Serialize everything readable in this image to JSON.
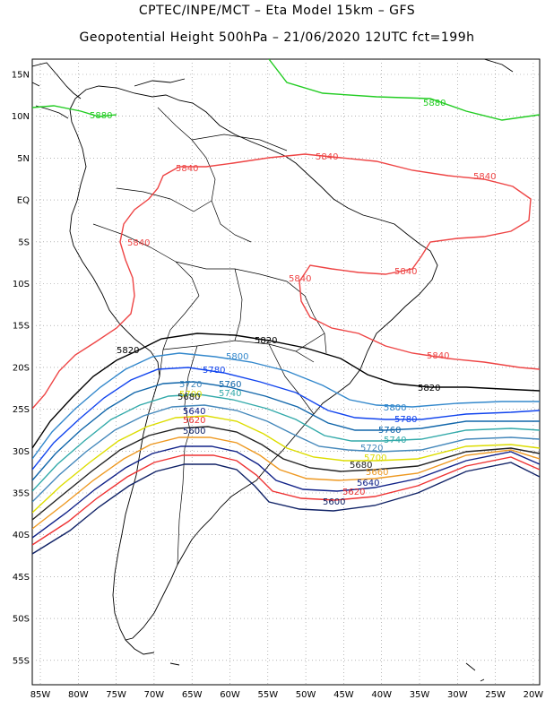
{
  "title_line1": "CPTEC/INPE/MCT –  Eta Model 15km – GFS",
  "title_line2": "Geopotential Height 500hPa – 21/06/2020 12UTC fct=199h",
  "lat_labels": [
    "15N",
    "10N",
    "5N",
    "EQ",
    "5S",
    "10S",
    "15S",
    "20S",
    "25S",
    "30S",
    "35S",
    "40S",
    "45S",
    "50S",
    "55S"
  ],
  "lon_labels": [
    "85W",
    "80W",
    "75W",
    "70W",
    "65W",
    "60W",
    "55W",
    "50W",
    "45W",
    "40W",
    "35W",
    "30W",
    "25W",
    "20W"
  ],
  "contours": [
    {
      "value": 5880,
      "label": "5880",
      "color": "#22cc22"
    },
    {
      "value": 5840,
      "label": "5840",
      "color": "#ee4444"
    },
    {
      "value": 5820,
      "label": "5820",
      "color": "#000000"
    },
    {
      "value": 5800,
      "label": "5800",
      "color": "#3388cc"
    },
    {
      "value": 5780,
      "label": "5780",
      "color": "#1144ee"
    },
    {
      "value": 5760,
      "label": "5760",
      "color": "#1166aa"
    },
    {
      "value": 5740,
      "label": "5740",
      "color": "#33aaaa"
    },
    {
      "value": 5720,
      "label": "5720",
      "color": "#4488bb"
    },
    {
      "value": 5700,
      "label": "5700",
      "color": "#dddd00"
    },
    {
      "value": 5680,
      "label": "5680",
      "color": "#222222"
    },
    {
      "value": 5660,
      "label": "5660",
      "color": "#ee9922"
    },
    {
      "value": 5640,
      "label": "5640",
      "color": "#112288"
    },
    {
      "value": 5620,
      "label": "5620",
      "color": "#ee3333"
    },
    {
      "value": 5600,
      "label": "5600",
      "color": "#102266"
    }
  ]
}
